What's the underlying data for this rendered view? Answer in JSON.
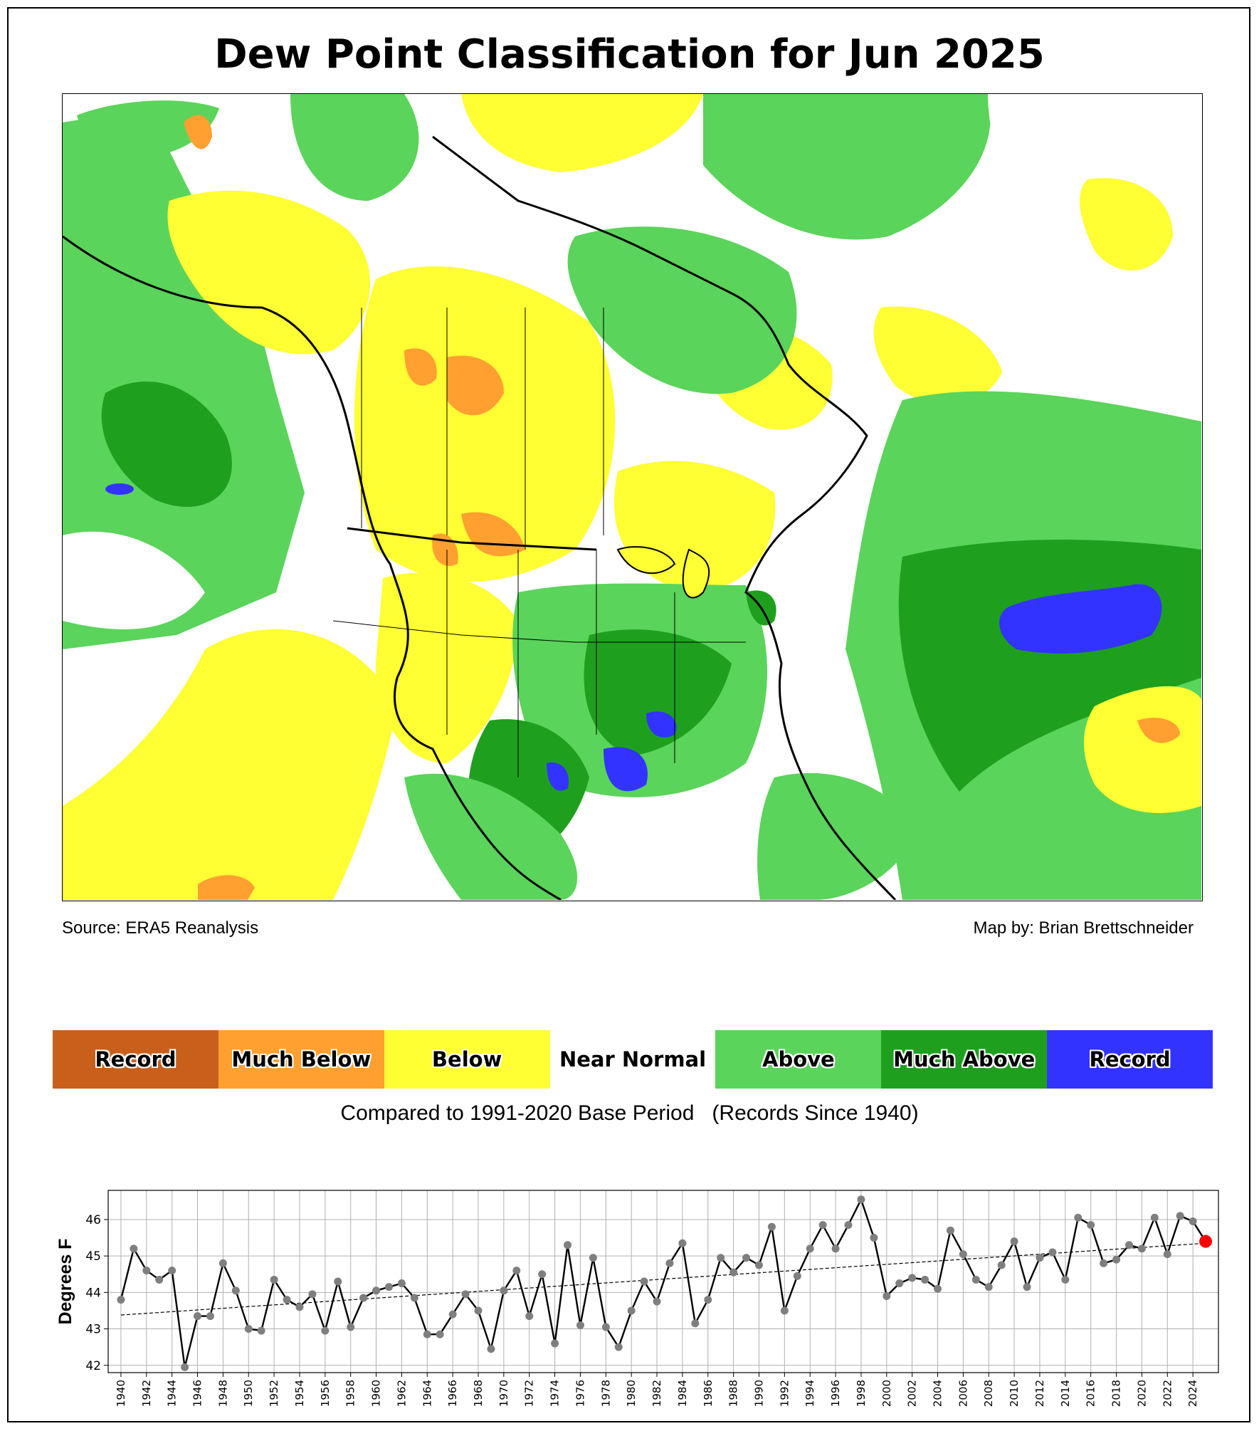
{
  "title": "Dew Point Classification for Jun 2025",
  "source_text": "Source: ERA5 Reanalysis",
  "credit_text": "Map by: Brian Brettschneider",
  "legend": [
    {
      "label": "Record",
      "color": "#c8601c"
    },
    {
      "label": "Much Below",
      "color": "#ffa030"
    },
    {
      "label": "Below",
      "color": "#ffff33"
    },
    {
      "label": "Near Normal",
      "color": "#ffffff"
    },
    {
      "label": "Above",
      "color": "#5ad45a"
    },
    {
      "label": "Much Above",
      "color": "#1ea01e"
    },
    {
      "label": "Record",
      "color": "#3333ff"
    }
  ],
  "base_period_text": "Compared to 1991-2020 Base Period   (Records Since 1940)",
  "map_colors": {
    "land_outline": "#000000",
    "ocean": "#ffffff"
  },
  "chart_data": {
    "type": "line",
    "title": "",
    "xlabel": "",
    "ylabel": "Degrees F",
    "ylim": [
      41.8,
      46.8
    ],
    "xlim": [
      1939,
      2026
    ],
    "yticks": [
      42,
      43,
      44,
      45,
      46
    ],
    "xticks": [
      1940,
      1942,
      1944,
      1946,
      1948,
      1950,
      1952,
      1954,
      1956,
      1958,
      1960,
      1962,
      1964,
      1966,
      1968,
      1970,
      1972,
      1974,
      1976,
      1978,
      1980,
      1982,
      1984,
      1986,
      1988,
      1990,
      1992,
      1994,
      1996,
      1998,
      2000,
      2002,
      2004,
      2006,
      2008,
      2010,
      2012,
      2014,
      2016,
      2018,
      2020,
      2022,
      2024
    ],
    "grid": true,
    "x": [
      1940,
      1941,
      1942,
      1943,
      1944,
      1945,
      1946,
      1947,
      1948,
      1949,
      1950,
      1951,
      1952,
      1953,
      1954,
      1955,
      1956,
      1957,
      1958,
      1959,
      1960,
      1961,
      1962,
      1963,
      1964,
      1965,
      1966,
      1967,
      1968,
      1969,
      1970,
      1971,
      1972,
      1973,
      1974,
      1975,
      1976,
      1977,
      1978,
      1979,
      1980,
      1981,
      1982,
      1983,
      1984,
      1985,
      1986,
      1987,
      1988,
      1989,
      1990,
      1991,
      1992,
      1993,
      1994,
      1995,
      1996,
      1997,
      1998,
      1999,
      2000,
      2001,
      2002,
      2003,
      2004,
      2005,
      2006,
      2007,
      2008,
      2009,
      2010,
      2011,
      2012,
      2013,
      2014,
      2015,
      2016,
      2017,
      2018,
      2019,
      2020,
      2021,
      2022,
      2023,
      2024,
      2025
    ],
    "series": [
      {
        "values": [
          43.8,
          45.2,
          44.6,
          44.35,
          44.6,
          41.95,
          43.35,
          43.35,
          44.8,
          44.05,
          43.0,
          42.95,
          44.35,
          43.8,
          43.6,
          43.95,
          42.95,
          44.3,
          43.05,
          43.85,
          44.05,
          44.15,
          44.25,
          43.85,
          42.85,
          42.85,
          43.4,
          43.95,
          43.5,
          42.45,
          44.05,
          44.6,
          43.35,
          44.5,
          42.6,
          45.3,
          43.1,
          44.95,
          43.05,
          42.5,
          43.5,
          44.3,
          43.75,
          44.8,
          45.35,
          43.15,
          43.8,
          44.95,
          44.55,
          44.95,
          44.75,
          45.8,
          43.5,
          44.45,
          45.2,
          45.85,
          45.2,
          45.85,
          46.55,
          45.5,
          43.9,
          44.25,
          44.4,
          44.35,
          44.1,
          45.7,
          45.05,
          44.35,
          44.15,
          44.75,
          45.4,
          44.15,
          44.95,
          45.1,
          44.35,
          46.05,
          45.85,
          44.8,
          44.9,
          45.3,
          45.2,
          46.05,
          45.05,
          46.1,
          45.95,
          45.4
        ]
      }
    ],
    "trend": {
      "start": 43.38,
      "end": 45.35
    },
    "highlight_year": 2025,
    "colors": {
      "line": "#000000",
      "marker": "#7f7f7f",
      "highlight": "#ff0000",
      "grid": "#b0b0b0"
    }
  }
}
